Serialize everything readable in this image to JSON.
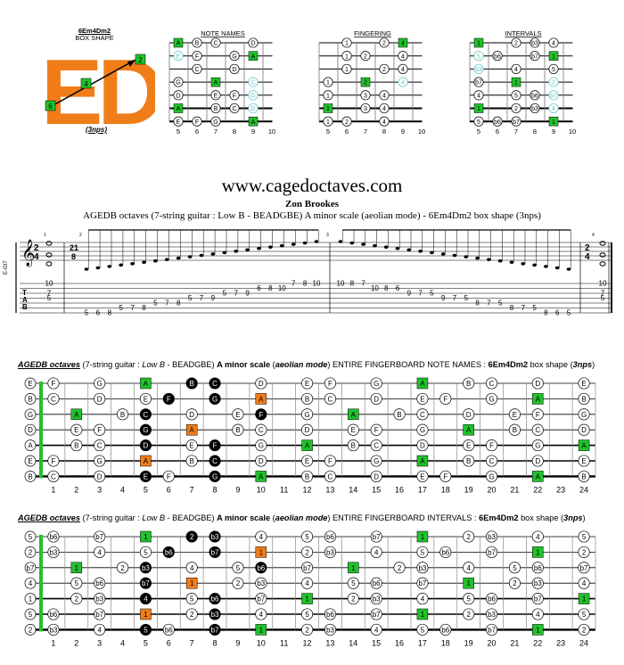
{
  "top": {
    "shape_title_line1": "6Em4Dm2",
    "shape_title_line2": "BOX SHAPE",
    "logo_text": "ED",
    "logo_marks": [
      "2",
      "4",
      "6"
    ],
    "nps": "(3nps)",
    "colors": {
      "orange": "#f07d1a",
      "green": "#21c12c",
      "teal": "#5fc5c0"
    },
    "diagrams": [
      {
        "title": "NOTE NAMES",
        "grid": [
          [
            "A",
            "B",
            "C",
            "",
            "D"
          ],
          [
            "E",
            "F",
            "",
            "G",
            "A"
          ],
          [
            "",
            "C",
            "",
            "D",
            ""
          ],
          [
            "G",
            "",
            "A",
            "",
            "C"
          ],
          [
            "D",
            "",
            "E",
            "F",
            "G"
          ],
          [
            "A",
            "",
            "B",
            "C",
            "D"
          ],
          [
            "E",
            "F",
            "G",
            "",
            "A"
          ]
        ]
      },
      {
        "title": "FINGERING",
        "grid": [
          [
            "",
            "1",
            "",
            "2",
            "4"
          ],
          [
            "",
            "1",
            "2",
            "",
            "4"
          ],
          [
            "",
            "1",
            "",
            "2",
            "4"
          ],
          [
            "1",
            "",
            "2",
            "",
            "4"
          ],
          [
            "1",
            "",
            "3",
            "4",
            ""
          ],
          [
            "1",
            "",
            "3",
            "4",
            ""
          ],
          [
            "1",
            "2",
            "",
            "4",
            ""
          ]
        ]
      },
      {
        "title": "INTERVALS",
        "grid": [
          [
            "1",
            "",
            "2",
            "b3",
            "4"
          ],
          [
            "5",
            "b6",
            "",
            "b7",
            "1"
          ],
          [
            "b3",
            "",
            "4",
            "",
            "5"
          ],
          [
            "b7",
            "",
            "1",
            "",
            "2"
          ],
          [
            "4",
            "",
            "5",
            "b6",
            "b7"
          ],
          [
            "1",
            "",
            "2",
            "b3",
            "4"
          ],
          [
            "5",
            "b6",
            "b7",
            "",
            "1"
          ]
        ]
      }
    ],
    "fret_numbers": [
      "5",
      "6",
      "7",
      "8",
      "9",
      "10"
    ]
  },
  "site_url": "www.cagedoctaves.com",
  "author": "Zon Brookes",
  "subtitle": "AGEDB octaves (7-string guitar : Low B - BEADGBE) A minor scale (aeolian mode) - 6Em4Dm2 box shape (3nps)",
  "notation": {
    "side_label": "E-Gt7",
    "time_sig": [
      "2",
      "4"
    ],
    "mid_time_sig": [
      "21",
      "8"
    ],
    "tab_letters": [
      "T",
      "A",
      "B"
    ],
    "chord_tab": [
      "10",
      "7",
      "5"
    ],
    "bar_numbers": [
      "1",
      "2",
      "3",
      "4"
    ],
    "run_up": [
      {
        "s": 6,
        "f": "5"
      },
      {
        "s": 6,
        "f": "6"
      },
      {
        "s": 6,
        "f": "8"
      },
      {
        "s": 5,
        "f": "5"
      },
      {
        "s": 5,
        "f": "7"
      },
      {
        "s": 5,
        "f": "8"
      },
      {
        "s": 4,
        "f": "5"
      },
      {
        "s": 4,
        "f": "7"
      },
      {
        "s": 4,
        "f": "8"
      },
      {
        "s": 3,
        "f": "5"
      },
      {
        "s": 3,
        "f": "7"
      },
      {
        "s": 3,
        "f": "9"
      },
      {
        "s": 2,
        "f": "5"
      },
      {
        "s": 2,
        "f": "7"
      },
      {
        "s": 2,
        "f": "9"
      },
      {
        "s": 1,
        "f": "6"
      },
      {
        "s": 1,
        "f": "8"
      },
      {
        "s": 1,
        "f": "10"
      },
      {
        "s": 0,
        "f": "7"
      },
      {
        "s": 0,
        "f": "8"
      },
      {
        "s": 0,
        "f": "10"
      }
    ],
    "run_down": [
      {
        "s": 0,
        "f": "10"
      },
      {
        "s": 0,
        "f": "8"
      },
      {
        "s": 0,
        "f": "7"
      },
      {
        "s": 1,
        "f": "10"
      },
      {
        "s": 1,
        "f": "8"
      },
      {
        "s": 1,
        "f": "6"
      },
      {
        "s": 2,
        "f": "9"
      },
      {
        "s": 2,
        "f": "7"
      },
      {
        "s": 2,
        "f": "5"
      },
      {
        "s": 3,
        "f": "9"
      },
      {
        "s": 3,
        "f": "7"
      },
      {
        "s": 3,
        "f": "5"
      },
      {
        "s": 4,
        "f": "8"
      },
      {
        "s": 4,
        "f": "7"
      },
      {
        "s": 4,
        "f": "5"
      },
      {
        "s": 5,
        "f": "8"
      },
      {
        "s": 5,
        "f": "7"
      },
      {
        "s": 5,
        "f": "5"
      },
      {
        "s": 6,
        "f": "8"
      },
      {
        "s": 6,
        "f": "6"
      },
      {
        "s": 6,
        "f": "5"
      }
    ]
  },
  "board1": {
    "title_parts": [
      "AGEDB octaves",
      " (7-string guitar : ",
      "Low B",
      " - BEADGBE) ",
      "A minor scale",
      " (",
      "aeolian mode",
      ") ENTIRE FINGERBOARD NOTE NAMES : ",
      "6Em4Dm2",
      " box shape (",
      "3nps",
      ")"
    ],
    "open": [
      "E",
      "B",
      "G",
      "D",
      "A",
      "E",
      "B"
    ],
    "rows": [
      [
        "F",
        "",
        "G",
        "",
        "A",
        "",
        "B",
        "C",
        "",
        "D",
        "",
        "E",
        "F",
        "",
        "G",
        "",
        "A",
        "",
        "B",
        "C",
        "",
        "D",
        "",
        "E"
      ],
      [
        "C",
        "",
        "D",
        "",
        "E",
        "F",
        "",
        "G",
        "",
        "A",
        "",
        "B",
        "C",
        "",
        "D",
        "",
        "E",
        "F",
        "",
        "G",
        "",
        "A",
        "",
        "B"
      ],
      [
        "",
        "A",
        "",
        "B",
        "C",
        "",
        "D",
        "",
        "E",
        "F",
        "",
        "G",
        "",
        "A",
        "",
        "B",
        "C",
        "",
        "D",
        "",
        "E",
        "F",
        "",
        "G"
      ],
      [
        "",
        "E",
        "F",
        "",
        "G",
        "",
        "A",
        "",
        "B",
        "C",
        "",
        "D",
        "",
        "E",
        "F",
        "",
        "G",
        "",
        "A",
        "",
        "B",
        "C",
        "",
        "D"
      ],
      [
        "",
        "B",
        "C",
        "",
        "D",
        "",
        "E",
        "F",
        "",
        "G",
        "",
        "A",
        "",
        "B",
        "C",
        "",
        "D",
        "",
        "E",
        "F",
        "",
        "G",
        "",
        "A"
      ],
      [
        "F",
        "",
        "G",
        "",
        "A",
        "",
        "B",
        "C",
        "",
        "D",
        "",
        "E",
        "F",
        "",
        "G",
        "",
        "A",
        "",
        "B",
        "C",
        "",
        "D",
        "",
        "E"
      ],
      [
        "C",
        "",
        "D",
        "",
        "E",
        "F",
        "",
        "G",
        "",
        "A",
        "",
        "B",
        "C",
        "",
        "D",
        "",
        "E",
        "F",
        "",
        "G",
        "",
        "A",
        "",
        "B"
      ]
    ],
    "frets": [
      "1",
      "2",
      "3",
      "4",
      "5",
      "6",
      "7",
      "8",
      "9",
      "10",
      "11",
      "12",
      "13",
      "14",
      "15",
      "16",
      "17",
      "18",
      "19",
      "20",
      "21",
      "22",
      "23",
      "24"
    ]
  },
  "board2": {
    "title_parts": [
      "AGEDB octaves",
      " (7-string guitar : ",
      "Low B",
      " - BEADGBE) ",
      "A minor scale",
      " (",
      "aeolian mode",
      ") ENTIRE FINGERBOARD INTERVALS : ",
      "6Em4Dm2",
      " box shape (",
      "3nps",
      ")"
    ],
    "open": [
      "5",
      "2",
      "b7",
      "4",
      "1",
      "5",
      "2"
    ],
    "rows": [
      [
        "b6",
        "",
        "b7",
        "",
        "1",
        "",
        "2",
        "b3",
        "",
        "4",
        "",
        "5",
        "b6",
        "",
        "b7",
        "",
        "1",
        "",
        "2",
        "b3",
        "",
        "4",
        "",
        "5"
      ],
      [
        "b3",
        "",
        "4",
        "",
        "5",
        "b6",
        "",
        "b7",
        "",
        "1",
        "",
        "2",
        "b3",
        "",
        "4",
        "",
        "5",
        "b6",
        "",
        "b7",
        "",
        "1",
        "",
        "2"
      ],
      [
        "",
        "1",
        "",
        "2",
        "b3",
        "",
        "4",
        "",
        "5",
        "b6",
        "",
        "b7",
        "",
        "1",
        "",
        "2",
        "b3",
        "",
        "4",
        "",
        "5",
        "b6",
        "",
        "b7"
      ],
      [
        "",
        "5",
        "b6",
        "",
        "b7",
        "",
        "1",
        "",
        "2",
        "b3",
        "",
        "4",
        "",
        "5",
        "b6",
        "",
        "b7",
        "",
        "1",
        "",
        "2",
        "b3",
        "",
        "4"
      ],
      [
        "",
        "2",
        "b3",
        "",
        "4",
        "",
        "5",
        "b6",
        "",
        "b7",
        "",
        "1",
        "",
        "2",
        "b3",
        "",
        "4",
        "",
        "5",
        "b6",
        "",
        "b7",
        "",
        "1"
      ],
      [
        "b6",
        "",
        "b7",
        "",
        "1",
        "",
        "2",
        "b3",
        "",
        "4",
        "",
        "5",
        "b6",
        "",
        "b7",
        "",
        "1",
        "",
        "2",
        "b3",
        "",
        "4",
        "",
        "5"
      ],
      [
        "b3",
        "",
        "4",
        "",
        "5",
        "b6",
        "",
        "b7",
        "",
        "1",
        "",
        "2",
        "b3",
        "",
        "4",
        "",
        "5",
        "b6",
        "",
        "b7",
        "",
        "1",
        "",
        "2"
      ]
    ],
    "frets": [
      "1",
      "2",
      "3",
      "4",
      "5",
      "6",
      "7",
      "8",
      "9",
      "10",
      "11",
      "12",
      "13",
      "14",
      "15",
      "16",
      "17",
      "18",
      "19",
      "20",
      "21",
      "22",
      "23",
      "24"
    ]
  }
}
